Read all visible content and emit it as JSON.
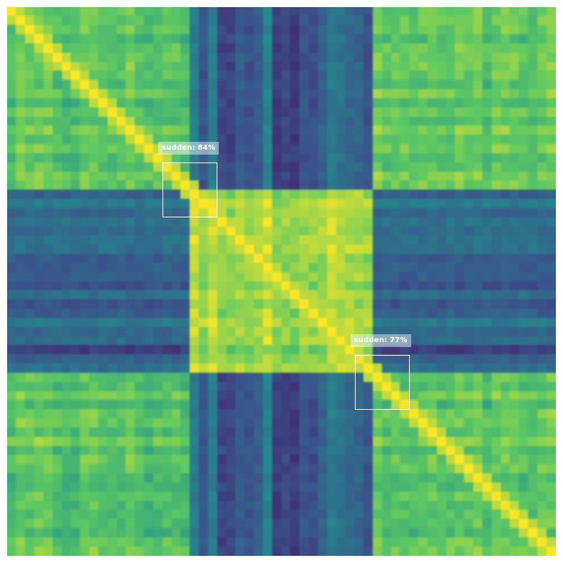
{
  "chart_data": {
    "type": "heatmap",
    "description_matrix": "self-similarity matrix, 3 regimes along both axes",
    "n": 60,
    "segments": [
      {
        "start": 0,
        "end": 20,
        "regime": "A"
      },
      {
        "start": 20,
        "end": 40,
        "regime": "B"
      },
      {
        "start": 40,
        "end": 60,
        "regime": "A"
      }
    ],
    "within_same_regime_similarity": 0.72,
    "within_regime_B_similarity": 0.86,
    "cross_regime_similarity": 0.32,
    "diagonal_similarity": 1.0,
    "colormap": [
      "#440154",
      "#3b528b",
      "#21918c",
      "#5ec962",
      "#fde725"
    ],
    "title": "",
    "xlabel": "",
    "ylabel": "",
    "detections": [
      {
        "label": "sudden: 84%",
        "type": "sudden",
        "confidence": 0.84,
        "start": 17,
        "end": 23
      },
      {
        "label": "sudden: 77%",
        "type": "sudden",
        "confidence": 0.77,
        "start": 38,
        "end": 44
      }
    ]
  }
}
